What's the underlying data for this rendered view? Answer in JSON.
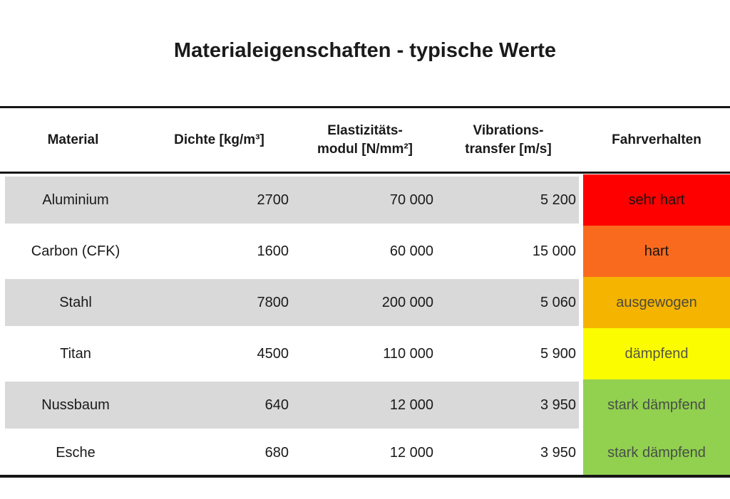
{
  "title": "Materialeigenschaften - typische Werte",
  "table": {
    "headers": {
      "material": "Material",
      "dichte": "Dichte [kg/m³]",
      "emodul_line1": "Elastizitäts-",
      "emodul_line2": "modul [N/mm²]",
      "vibration_line1": "Vibrations-",
      "vibration_line2": "transfer [m/s]",
      "fahrverhalten": "Fahrverhalten"
    },
    "zebra_color": "#D9D9D9",
    "rows": [
      {
        "material": "Aluminium",
        "dichte": "2700",
        "emodul": "70 000",
        "vibration": "5 200",
        "fahrverhalten": "sehr hart",
        "color": "#FE0000",
        "text_color": "#151515",
        "zebra": true,
        "height": 72
      },
      {
        "material": "Carbon (CFK)",
        "dichte": "1600",
        "emodul": "60 000",
        "vibration": "15 000",
        "fahrverhalten": "hart",
        "color": "#FA6A1E",
        "text_color": "#151515",
        "zebra": false,
        "height": 72
      },
      {
        "material": "Stahl",
        "dichte": "7800",
        "emodul": "200 000",
        "vibration": "5 060",
        "fahrverhalten": "ausgewogen",
        "color": "#F5B400",
        "text_color": "#4D4A3A",
        "zebra": true,
        "height": 72
      },
      {
        "material": "Titan",
        "dichte": "4500",
        "emodul": "110 000",
        "vibration": "5 900",
        "fahrverhalten": "dämpfend",
        "color": "#FBFC00",
        "text_color": "#565647",
        "zebra": false,
        "height": 72
      },
      {
        "material": "Nussbaum",
        "dichte": "640",
        "emodul": "12 000",
        "vibration": "3 950",
        "fahrverhalten": "stark dämpfend",
        "color": "#92D050",
        "text_color": "#474F47",
        "zebra": true,
        "height": 72
      },
      {
        "material": "Esche",
        "dichte": "680",
        "emodul": "12 000",
        "vibration": "3 950",
        "fahrverhalten": "stark dämpfend",
        "color": "#92D050",
        "text_color": "#474F47",
        "zebra": false,
        "height": 63
      }
    ]
  },
  "chart_data": {
    "type": "table",
    "title": "Materialeigenschaften - typische Werte",
    "columns": [
      "Material",
      "Dichte [kg/m³]",
      "Elastizitätsmodul [N/mm²]",
      "Vibrationstransfer [m/s]",
      "Fahrverhalten"
    ],
    "rows": [
      [
        "Aluminium",
        2700,
        70000,
        5200,
        "sehr hart"
      ],
      [
        "Carbon (CFK)",
        1600,
        60000,
        15000,
        "hart"
      ],
      [
        "Stahl",
        7800,
        200000,
        5060,
        "ausgewogen"
      ],
      [
        "Titan",
        4500,
        110000,
        5900,
        "dämpfend"
      ],
      [
        "Nussbaum",
        640,
        12000,
        3950,
        "stark dämpfend"
      ],
      [
        "Esche",
        680,
        12000,
        3950,
        "stark dämpfend"
      ]
    ],
    "fahrverhalten_scale_colors": [
      "#FE0000",
      "#FA6A1E",
      "#F5B400",
      "#FBFC00",
      "#92D050",
      "#92D050"
    ],
    "zebra_row_color": "#D9D9D9"
  }
}
